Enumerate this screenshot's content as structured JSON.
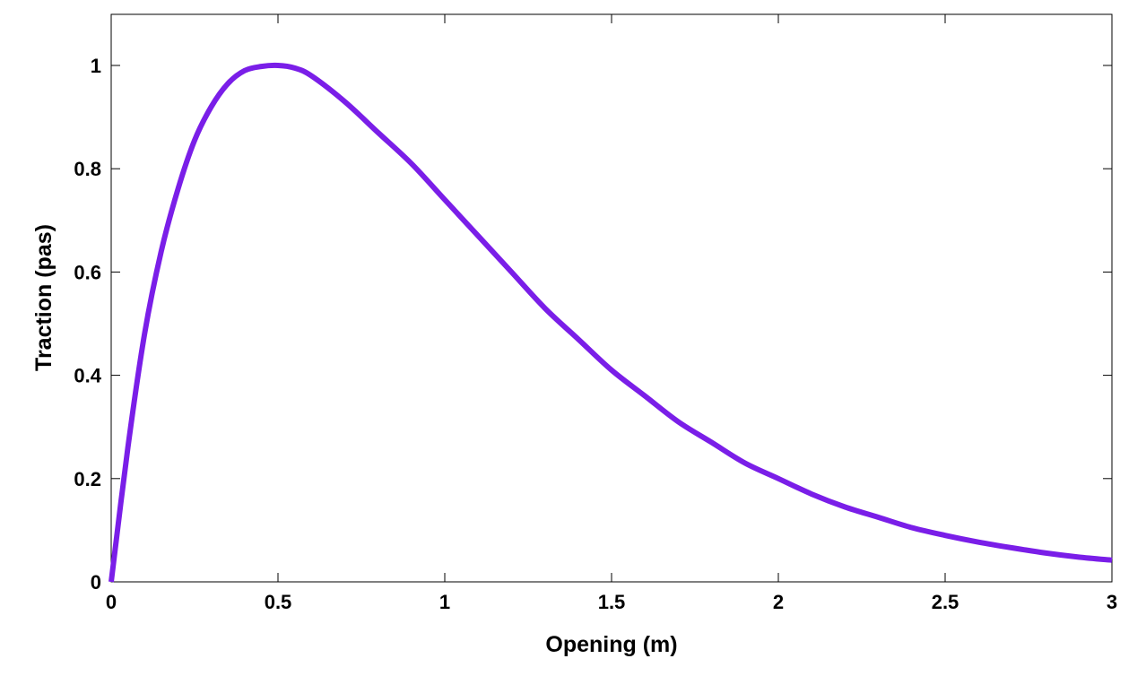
{
  "chart_data": {
    "type": "line",
    "title": "",
    "xlabel": "Opening (m)",
    "ylabel": "Traction (pas)",
    "xlim": [
      0,
      3
    ],
    "ylim": [
      0,
      1.1
    ],
    "xticks": [
      0,
      0.5,
      1,
      1.5,
      2,
      2.5,
      3
    ],
    "xtick_labels": [
      "0",
      "0.5",
      "1",
      "1.5",
      "2",
      "2.5",
      "3"
    ],
    "yticks": [
      0,
      0.2,
      0.4,
      0.6,
      0.8,
      1
    ],
    "ytick_labels": [
      "0",
      "0.2",
      "0.4",
      "0.6",
      "0.8",
      "1"
    ],
    "grid": false,
    "series": [
      {
        "color": "#7a1ee8",
        "x": [
          0,
          0.05,
          0.1,
          0.15,
          0.2,
          0.25,
          0.3,
          0.35,
          0.4,
          0.45,
          0.5,
          0.55,
          0.6,
          0.7,
          0.8,
          0.9,
          1.0,
          1.1,
          1.2,
          1.3,
          1.4,
          1.5,
          1.6,
          1.7,
          1.8,
          1.9,
          2.0,
          2.1,
          2.2,
          2.3,
          2.4,
          2.5,
          2.6,
          2.7,
          2.8,
          2.9,
          3.0
        ],
        "values": [
          0,
          0.26,
          0.48,
          0.64,
          0.76,
          0.855,
          0.92,
          0.965,
          0.99,
          0.998,
          1.0,
          0.995,
          0.98,
          0.93,
          0.87,
          0.81,
          0.74,
          0.67,
          0.6,
          0.53,
          0.47,
          0.41,
          0.36,
          0.31,
          0.27,
          0.23,
          0.2,
          0.17,
          0.145,
          0.125,
          0.105,
          0.09,
          0.077,
          0.066,
          0.056,
          0.048,
          0.042
        ]
      }
    ]
  }
}
